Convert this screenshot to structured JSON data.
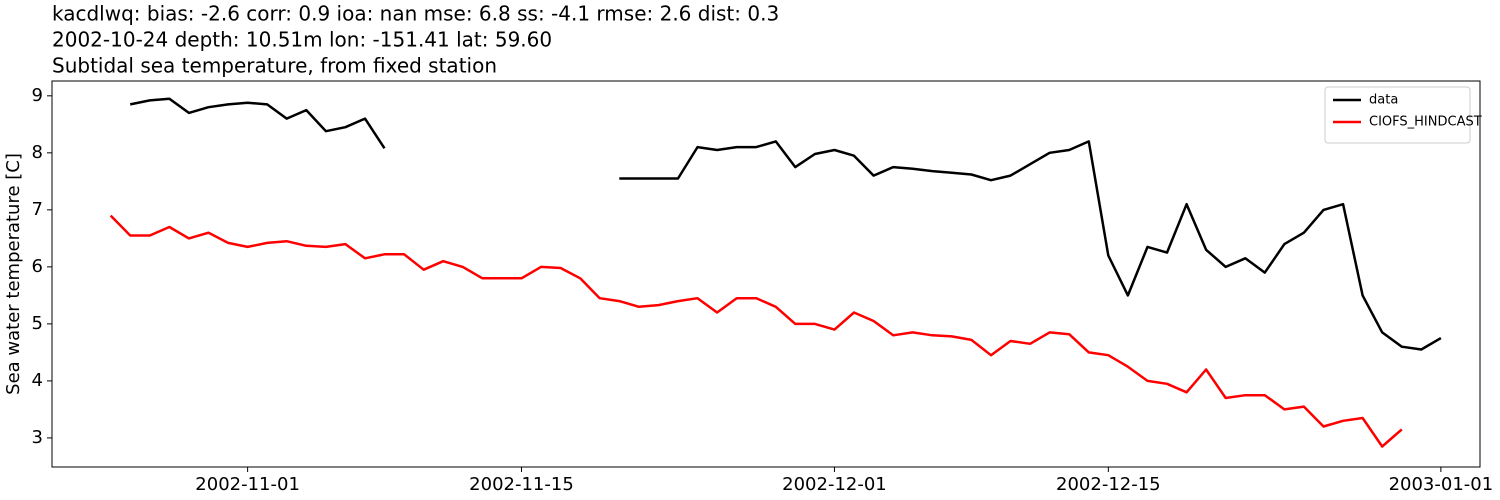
{
  "chart_data": {
    "type": "line",
    "title_lines": [
      "kacdlwq: bias: -2.6  corr: 0.9  ioa: nan  mse: 6.8  ss: -4.1  rmse: 2.6  dist: 0.3",
      "2002-10-24 depth: 10.51m lon: -151.41 lat: 59.60",
      "Subtidal sea temperature, from fixed station"
    ],
    "y_label": "Sea water temperature [C]",
    "x": [
      "2002-10-25",
      "2002-10-26",
      "2002-10-27",
      "2002-10-28",
      "2002-10-29",
      "2002-10-30",
      "2002-10-31",
      "2002-11-01",
      "2002-11-02",
      "2002-11-03",
      "2002-11-04",
      "2002-11-05",
      "2002-11-06",
      "2002-11-07",
      "2002-11-08",
      "2002-11-09",
      "2002-11-10",
      "2002-11-11",
      "2002-11-12",
      "2002-11-13",
      "2002-11-14",
      "2002-11-15",
      "2002-11-16",
      "2002-11-17",
      "2002-11-18",
      "2002-11-19",
      "2002-11-20",
      "2002-11-21",
      "2002-11-22",
      "2002-11-23",
      "2002-11-24",
      "2002-11-25",
      "2002-11-26",
      "2002-11-27",
      "2002-11-28",
      "2002-11-29",
      "2002-11-30",
      "2002-12-01",
      "2002-12-02",
      "2002-12-03",
      "2002-12-04",
      "2002-12-05",
      "2002-12-06",
      "2002-12-07",
      "2002-12-08",
      "2002-12-09",
      "2002-12-10",
      "2002-12-11",
      "2002-12-12",
      "2002-12-13",
      "2002-12-14",
      "2002-12-15",
      "2002-12-16",
      "2002-12-17",
      "2002-12-18",
      "2002-12-19",
      "2002-12-20",
      "2002-12-21",
      "2002-12-22",
      "2002-12-23",
      "2002-12-24",
      "2002-12-25",
      "2002-12-26",
      "2002-12-27",
      "2002-12-28",
      "2002-12-29",
      "2002-12-30",
      "2002-12-31",
      "2003-01-01"
    ],
    "series": [
      {
        "name": "data",
        "color": "#000000",
        "values": [
          null,
          8.85,
          8.92,
          8.95,
          8.7,
          8.8,
          8.85,
          8.88,
          8.85,
          8.6,
          8.75,
          8.38,
          8.45,
          8.6,
          8.08,
          null,
          null,
          null,
          null,
          null,
          null,
          null,
          null,
          null,
          null,
          null,
          7.55,
          7.55,
          7.55,
          7.55,
          8.1,
          8.05,
          8.1,
          8.1,
          8.2,
          7.75,
          7.98,
          8.05,
          7.95,
          7.6,
          7.75,
          7.72,
          7.68,
          7.65,
          7.62,
          7.52,
          7.6,
          7.8,
          8.0,
          8.05,
          8.2,
          6.2,
          5.5,
          6.35,
          6.25,
          7.1,
          6.3,
          6.0,
          6.15,
          5.9,
          6.4,
          6.6,
          7.0,
          7.1,
          5.5,
          4.85,
          4.6,
          4.55,
          4.75
        ]
      },
      {
        "name": "CIOFS_HINDCAST",
        "color": "#ff0000",
        "values": [
          6.9,
          6.55,
          6.55,
          6.7,
          6.5,
          6.6,
          6.42,
          6.35,
          6.42,
          6.45,
          6.37,
          6.35,
          6.4,
          6.15,
          6.22,
          6.22,
          5.95,
          6.1,
          6.0,
          5.8,
          5.8,
          5.8,
          6.0,
          5.98,
          5.8,
          5.45,
          5.4,
          5.3,
          5.33,
          5.4,
          5.45,
          5.2,
          5.45,
          5.45,
          5.3,
          5.0,
          5.0,
          4.9,
          5.2,
          5.05,
          4.8,
          4.85,
          4.8,
          4.78,
          4.72,
          4.45,
          4.7,
          4.65,
          4.85,
          4.82,
          4.5,
          4.45,
          4.25,
          4.0,
          3.95,
          3.8,
          4.2,
          3.7,
          3.75,
          3.75,
          3.5,
          3.55,
          3.2,
          3.3,
          3.35,
          2.85,
          3.15,
          null,
          null
        ]
      }
    ],
    "xlim": [
      "2002-10-22",
      "2003-01-03"
    ],
    "xticks": [
      "2002-11-01",
      "2002-11-15",
      "2002-12-01",
      "2002-12-15",
      "2003-01-01"
    ],
    "ylim": [
      2.49,
      9.26
    ],
    "yticks": [
      3,
      4,
      5,
      6,
      7,
      8,
      9
    ],
    "legend": "upper right",
    "grid": false
  }
}
